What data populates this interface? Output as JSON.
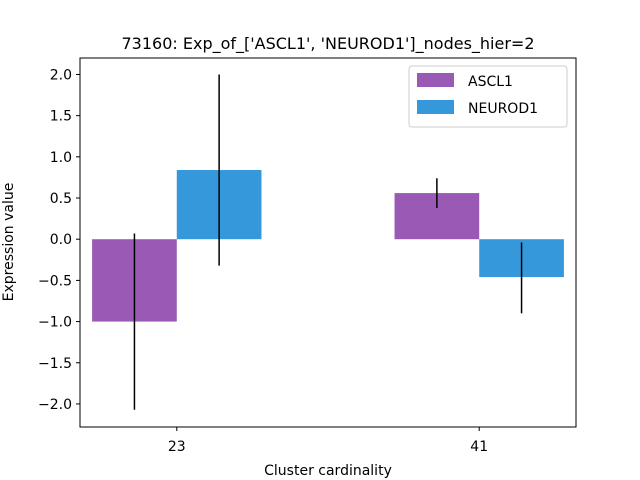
{
  "chart_data": {
    "type": "bar",
    "title": "73160: Exp_of_['ASCL1', 'NEUROD1']_nodes_hier=2",
    "xlabel": "Cluster cardinality",
    "ylabel": "Expression value",
    "categories": [
      "23",
      "41"
    ],
    "ylim": [
      -2.28,
      2.2
    ],
    "yticks": [
      -2.0,
      -1.5,
      -1.0,
      -0.5,
      0.0,
      0.5,
      1.0,
      1.5,
      2.0
    ],
    "ytick_labels": [
      "−2.0",
      "−1.5",
      "−1.0",
      "−0.5",
      "0.0",
      "0.5",
      "1.0",
      "1.5",
      "2.0"
    ],
    "grid": false,
    "legend_position": "top-right",
    "series": [
      {
        "name": "ASCL1",
        "color": "#9b59b6",
        "values": [
          -1.0,
          0.56
        ],
        "error_low": [
          -2.07,
          0.38
        ],
        "error_high": [
          0.07,
          0.74
        ]
      },
      {
        "name": "NEUROD1",
        "color": "#3498db",
        "values": [
          0.84,
          -0.46
        ],
        "error_low": [
          -0.32,
          -0.9
        ],
        "error_high": [
          2.0,
          -0.04
        ]
      }
    ]
  }
}
